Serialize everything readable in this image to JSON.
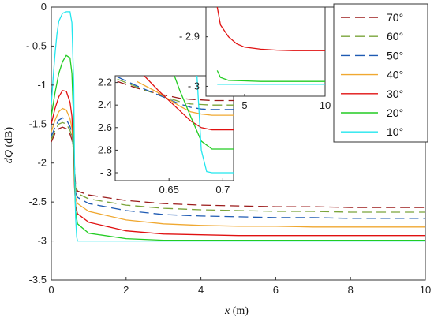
{
  "chart_data": {
    "type": "line",
    "xlabel_var": "x",
    "xlabel_unit": " (m)",
    "ylabel_var": "dQ",
    "ylabel_unit": " (dB)",
    "xlim": [
      0,
      10
    ],
    "ylim": [
      -3.5,
      0
    ],
    "xticks": [
      "0",
      "2",
      "4",
      "6",
      "8",
      "10"
    ],
    "yticks": [
      "0",
      "- 0.5",
      "-1",
      "-1.5",
      "-2",
      "-2.5",
      "-3",
      "-3.5"
    ],
    "legend_position": "top-right",
    "series": [
      {
        "name": "70°",
        "color": "#9b1b1b",
        "dash": "dashed",
        "x": [
          0,
          0.1,
          0.2,
          0.3,
          0.4,
          0.5,
          0.55,
          0.6,
          0.62,
          0.65,
          0.7,
          1,
          2,
          3,
          4,
          5,
          6,
          7,
          8,
          9,
          10
        ],
        "y": [
          -1.73,
          -1.62,
          -1.56,
          -1.54,
          -1.56,
          -1.63,
          -1.7,
          -1.85,
          -2.05,
          -2.3,
          -2.36,
          -2.41,
          -2.48,
          -2.52,
          -2.54,
          -2.55,
          -2.56,
          -2.56,
          -2.57,
          -2.57,
          -2.57
        ]
      },
      {
        "name": "60°",
        "color": "#7aa43a",
        "dash": "dashed",
        "x": [
          0,
          0.1,
          0.2,
          0.3,
          0.4,
          0.5,
          0.55,
          0.6,
          0.62,
          0.65,
          0.7,
          1,
          2,
          3,
          4,
          5,
          6,
          7,
          8,
          9,
          10
        ],
        "y": [
          -1.7,
          -1.58,
          -1.5,
          -1.48,
          -1.5,
          -1.58,
          -1.66,
          -1.85,
          -2.1,
          -2.33,
          -2.39,
          -2.46,
          -2.54,
          -2.58,
          -2.6,
          -2.61,
          -2.62,
          -2.62,
          -2.63,
          -2.63,
          -2.63
        ]
      },
      {
        "name": "50°",
        "color": "#1f5bb3",
        "dash": "dashed",
        "x": [
          0,
          0.1,
          0.2,
          0.3,
          0.4,
          0.5,
          0.55,
          0.6,
          0.62,
          0.65,
          0.7,
          1,
          2,
          3,
          4,
          5,
          6,
          7,
          8,
          9,
          10
        ],
        "y": [
          -1.66,
          -1.54,
          -1.45,
          -1.42,
          -1.44,
          -1.53,
          -1.62,
          -1.85,
          -2.15,
          -2.38,
          -2.44,
          -2.52,
          -2.61,
          -2.66,
          -2.68,
          -2.69,
          -2.7,
          -2.7,
          -2.71,
          -2.71,
          -2.71
        ]
      },
      {
        "name": "40°",
        "color": "#f0a830",
        "dash": "solid",
        "x": [
          0,
          0.1,
          0.2,
          0.3,
          0.4,
          0.5,
          0.55,
          0.6,
          0.62,
          0.65,
          0.7,
          1,
          2,
          3,
          4,
          5,
          6,
          7,
          8,
          9,
          10
        ],
        "y": [
          -1.6,
          -1.45,
          -1.34,
          -1.3,
          -1.32,
          -1.43,
          -1.55,
          -1.85,
          -2.2,
          -2.45,
          -2.52,
          -2.62,
          -2.73,
          -2.78,
          -2.8,
          -2.81,
          -2.81,
          -2.82,
          -2.82,
          -2.82,
          -2.82
        ]
      },
      {
        "name": "30°",
        "color": "#e01010",
        "dash": "solid",
        "x": [
          0,
          0.1,
          0.2,
          0.3,
          0.4,
          0.5,
          0.55,
          0.6,
          0.62,
          0.65,
          0.7,
          1,
          2,
          3,
          4,
          5,
          6,
          7,
          8,
          9,
          10
        ],
        "y": [
          -1.5,
          -1.3,
          -1.15,
          -1.07,
          -1.08,
          -1.22,
          -1.4,
          -1.85,
          -2.3,
          -2.55,
          -2.65,
          -2.76,
          -2.87,
          -2.91,
          -2.92,
          -2.93,
          -2.93,
          -2.93,
          -2.93,
          -2.93,
          -2.93
        ]
      },
      {
        "name": "20°",
        "color": "#22cc22",
        "dash": "solid",
        "x": [
          0,
          0.1,
          0.2,
          0.3,
          0.4,
          0.5,
          0.55,
          0.6,
          0.62,
          0.65,
          0.7,
          1,
          2,
          3,
          4,
          5,
          6,
          7,
          8,
          9,
          10
        ],
        "y": [
          -1.4,
          -1.1,
          -0.85,
          -0.7,
          -0.62,
          -0.65,
          -0.85,
          -1.5,
          -2.2,
          -2.62,
          -2.78,
          -2.9,
          -2.97,
          -2.99,
          -2.99,
          -2.99,
          -2.99,
          -2.99,
          -2.99,
          -2.99,
          -2.99
        ]
      },
      {
        "name": "10°",
        "color": "#22e6ee",
        "dash": "solid",
        "x": [
          0,
          0.05,
          0.1,
          0.15,
          0.2,
          0.3,
          0.4,
          0.5,
          0.55,
          0.6,
          0.62,
          0.65,
          0.68,
          0.7,
          1,
          2,
          3,
          4,
          5,
          6,
          7,
          8,
          9,
          10
        ],
        "y": [
          -1.25,
          -0.9,
          -0.6,
          -0.35,
          -0.18,
          -0.08,
          -0.06,
          -0.06,
          -0.2,
          -1.0,
          -2.0,
          -2.7,
          -2.95,
          -3.0,
          -3.0,
          -3.0,
          -3.0,
          -3.0,
          -3.0,
          -3.0,
          -3.0,
          -3.0,
          -3.0,
          -3.0
        ]
      }
    ],
    "inset_zoom_transition": {
      "xlim": [
        0.6,
        0.71
      ],
      "ylim": [
        -3.07,
        -2.14
      ],
      "xticks": [
        "0.65",
        "0.7"
      ],
      "yticks": [
        "2.2",
        "2.4",
        "2.6",
        "2.8",
        "- 3"
      ],
      "series": [
        {
          "name": "70°",
          "x": [
            0.602,
            0.62,
            0.64,
            0.66,
            0.67,
            0.68,
            0.69,
            0.71
          ],
          "y": [
            -2.19,
            -2.25,
            -2.3,
            -2.34,
            -2.35,
            -2.355,
            -2.36,
            -2.36
          ]
        },
        {
          "name": "60°",
          "x": [
            0.602,
            0.62,
            0.64,
            0.66,
            0.67,
            0.68,
            0.69,
            0.71
          ],
          "y": [
            -2.17,
            -2.24,
            -2.31,
            -2.37,
            -2.39,
            -2.395,
            -2.4,
            -2.4
          ]
        },
        {
          "name": "50°",
          "x": [
            0.602,
            0.62,
            0.64,
            0.66,
            0.67,
            0.68,
            0.69,
            0.71
          ],
          "y": [
            -2.15,
            -2.23,
            -2.31,
            -2.39,
            -2.42,
            -2.435,
            -2.44,
            -2.44
          ]
        },
        {
          "name": "40°",
          "x": [
            0.62,
            0.64,
            0.66,
            0.67,
            0.68,
            0.69,
            0.71
          ],
          "y": [
            -2.19,
            -2.29,
            -2.41,
            -2.46,
            -2.48,
            -2.49,
            -2.49
          ]
        },
        {
          "name": "30°",
          "x": [
            0.627,
            0.64,
            0.66,
            0.67,
            0.68,
            0.69,
            0.71
          ],
          "y": [
            -2.14,
            -2.27,
            -2.45,
            -2.54,
            -2.6,
            -2.62,
            -2.62
          ]
        },
        {
          "name": "20°",
          "x": [
            0.655,
            0.66,
            0.67,
            0.68,
            0.69,
            0.71
          ],
          "y": [
            -2.14,
            -2.27,
            -2.5,
            -2.72,
            -2.79,
            -2.79
          ]
        },
        {
          "name": "10°",
          "x": [
            0.676,
            0.68,
            0.685,
            0.69,
            0.71
          ],
          "y": [
            -2.14,
            -2.8,
            -2.99,
            -3.0,
            -3.0
          ]
        }
      ]
    },
    "inset_zoom_plateau": {
      "xlim": [
        2.6,
        10
      ],
      "ylim": [
        -3.02,
        -2.84
      ],
      "xticks": [
        "5",
        "10"
      ],
      "yticks": [
        "- 2.9",
        "- 3"
      ],
      "series": [
        {
          "name": "30°",
          "x": [
            3.3,
            3.5,
            4.0,
            4.5,
            5,
            6,
            7,
            8,
            9,
            10
          ],
          "y": [
            -2.84,
            -2.876,
            -2.9,
            -2.914,
            -2.921,
            -2.925,
            -2.927,
            -2.928,
            -2.928,
            -2.928
          ]
        },
        {
          "name": "20°",
          "x": [
            3.3,
            3.5,
            4.0,
            5,
            6,
            7,
            8,
            9,
            10
          ],
          "y": [
            -2.968,
            -2.982,
            -2.988,
            -2.989,
            -2.99,
            -2.99,
            -2.99,
            -2.99,
            -2.99
          ]
        },
        {
          "name": "10°",
          "x": [
            3.3,
            10
          ],
          "y": [
            -2.996,
            -2.996
          ]
        }
      ]
    }
  }
}
